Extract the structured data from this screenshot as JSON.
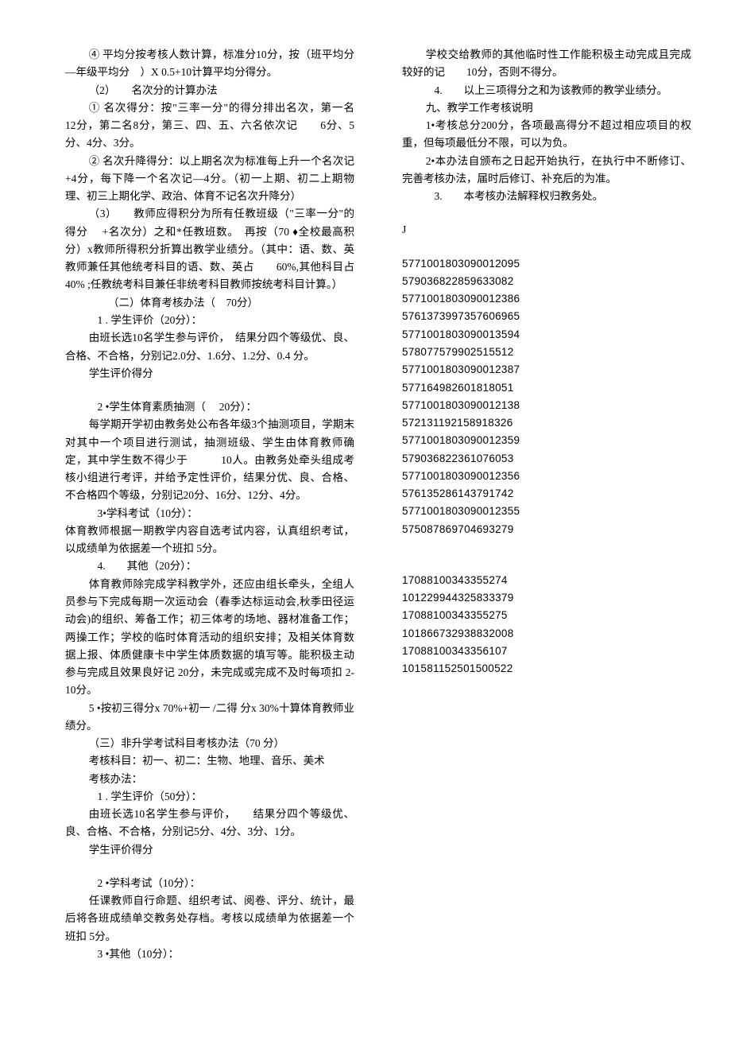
{
  "col1": {
    "p1": "④ 平均分按考核人数计算，标准分10分，按（班平均分—年级平均分　）X 0.5+10计算平均分得分。",
    "p2": "（2）　　名次分的计算办法",
    "p3": "① 名次得分：按\"三率一分\"的得分排出名次，第一名　 12分，第二名8分，第三、四、五、六名依次记　　6分、5分、4分、3分。",
    "p4": "② 名次升降得分：以上期名次为标准每上升一个名次记　 +4分，每下降一个名次记—4分。（初一上期、初二上期物理、初三上期化学、政治、体育不记名次升降分）",
    "p5": "（3）　　教师应得积分为所有任教班级（\"三率一分\"的得分　 +名次分）之和*任教班数。　再按（70 ♦全校最高积分）x教师所得积分折算出教学业绩分。（其中：语、数、英教师兼任其他统考科目的语、数、英占　　60%,其他科目占40% ;任教统考科目兼任非统考科目教师按统考科目计算。）",
    "p6": "（二）体育考核办法（　70分）",
    "p7": "1 . 学生评价（20分）：",
    "p8": "由班长选10名学生参与评价，　结果分四个等级优、良、合格、不合格，分别记2.0分、1.6分、1.2分、0.4 分。",
    "p9": "学生评价得分",
    "p10": "2 •学生体育素质抽测（　 20分）：",
    "p11": "每学期开学初由教务处公布各年级3个抽测项目，学期末对其中一个项目进行测试，抽测班级、学生由体育教师确定，其中学生数不得少于　　　10人。由教务处牵头组成考核小组进行考评，并给予定性评价，结果分优、良、合格、不合格四个等级，分别记20分、16分、12分、4分。",
    "p12": "3•学科考试（10分）：",
    "p13": "体育教师根据一期教学内容自选考试内容，认真组织考试，以成绩单为依据差一个班扣 5分。",
    "p14": "4.　　其他（20分）：",
    "p15": "体育教师除完成学科教学外，还应由组长牵头，全组人员参与下完成每期一次运动会（春季达标运动会,秋季田径运动会)的组织、筹备工作；初三体考的场地、器材准备工作；两操工作；学校的临时体育活动的组织安排；及相关体育数据上报、体质健康卡中学生体质数据的填写等。能积极主动参与完成且效果良好记 20分，未完成或完成不及时每项扣 2-10分。",
    "p16": "5 •按初三得分x 70%+初一 /二得 分x 30%十算体育教师业绩分。",
    "p17": "（三）非升学考试科目考核办法（70 分）",
    "p18": "考核科目：初一、初二：生物、地理、音乐、美术",
    "p19": "考核办法：",
    "p20": "1 . 学生评价（50分）："
  },
  "col2": {
    "p1": "由班长选10名学生参与评价，　　结果分四个等级优、良、合格、不合格，分别记5分、4分、3分、1分。",
    "p2": "学生评价得分",
    "p3": "2 •学科考试（10分）：",
    "p4": "任课教师自行命题、组织考试、阅卷、评分、统计，最后将各班成绩单交教务处存档。考核以成绩单为依据差一个班扣 5分。",
    "p5": "3 •其他（10分）：",
    "p6": "学校交给教师的其他临时性工作能积极主动完成且完成较好的记　　10分，否则不得分。",
    "p7": "4.　　以上三项得分之和为该教师的教学业绩分。",
    "p8": "九、教学工作考核说明",
    "p9": "1•考核总分200分，各项最高得分不超过相应项目的权重，但每项最低分不限，可以为负。",
    "p10": "2•本办法自颁布之日起开始执行，在执行中不断修订、完善考核办法，届时后修订、补充后的为准。",
    "p11": "3.　　本考核办法解释权归教务处。",
    "pJ": "J",
    "nums1": [
      "5771001803090012095",
      "579036822859633082",
      "5771001803090012386",
      "5761373997357606965",
      "5771001803090013594",
      "578077579902515512",
      "5771001803090012387",
      "577164982601818051",
      "5771001803090012138",
      "572131192158918326",
      "5771001803090012359",
      "579036822361076053",
      "5771001803090012356",
      "576135286143791742",
      "5771001803090012355",
      "575087869704693279"
    ],
    "nums2": [
      "17088100343355274",
      "101229944325833379",
      "17088100343355275",
      "101866732938832008",
      "17088100343356107",
      "101581152501500522"
    ]
  }
}
